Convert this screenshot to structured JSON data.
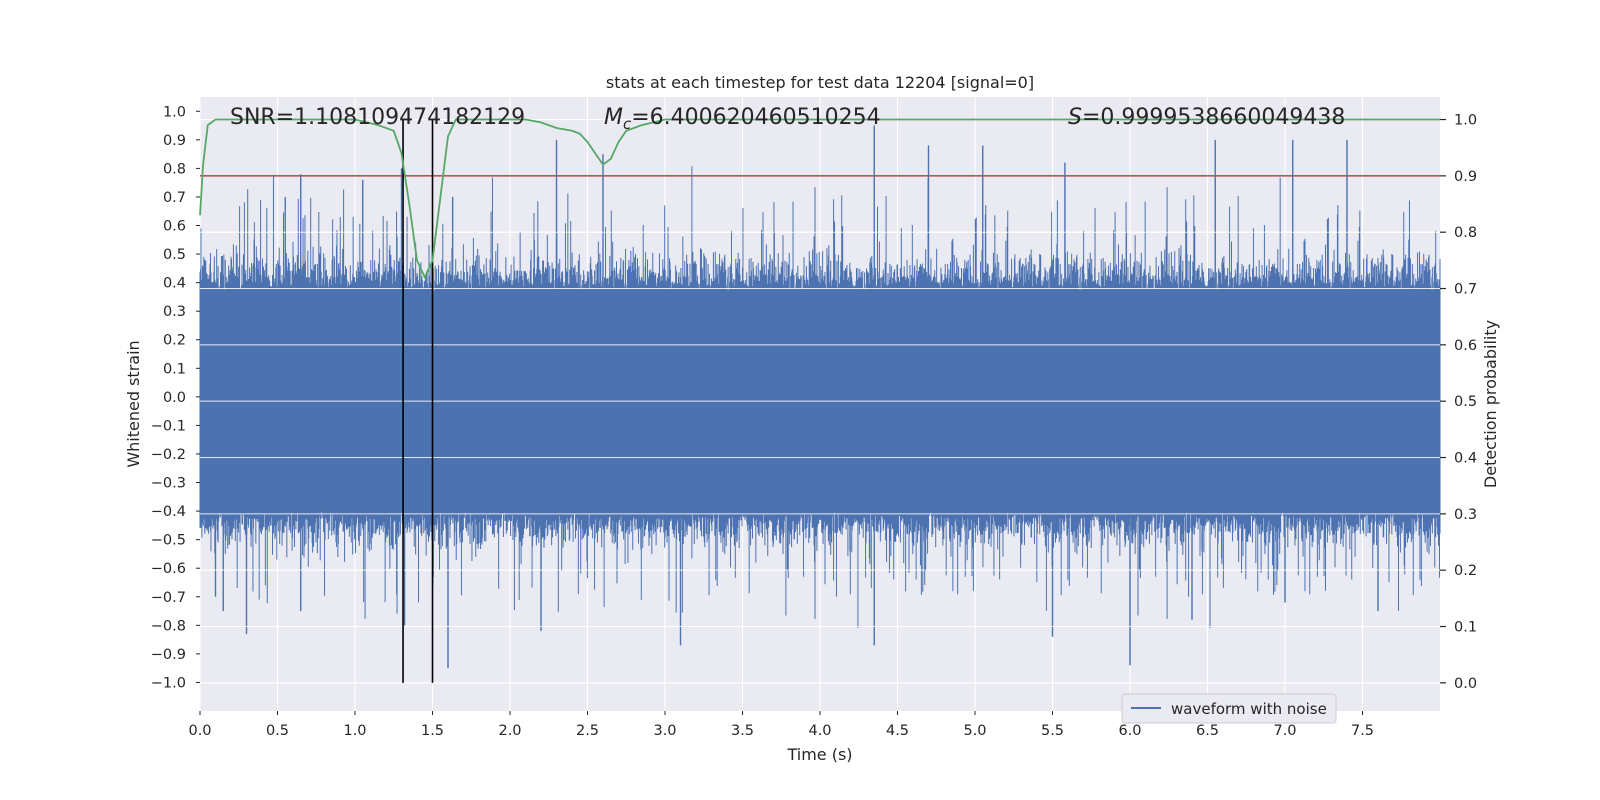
{
  "chart_data": {
    "type": "line",
    "title": "stats at each timestep for test data 12204 [signal=0]",
    "xlabel": "Time (s)",
    "ylabel_left": "Whitened strain",
    "ylabel_right": "Detection probability",
    "xlim": [
      0.0,
      8.0
    ],
    "ylim_left": [
      -1.1,
      1.05
    ],
    "ylim_right": [
      -0.05,
      1.04
    ],
    "x_ticks": [
      "0.0",
      "0.5",
      "1.0",
      "1.5",
      "2.0",
      "2.5",
      "3.0",
      "3.5",
      "4.0",
      "4.5",
      "5.0",
      "5.5",
      "6.0",
      "6.5",
      "7.0",
      "7.5"
    ],
    "y_left_ticks": [
      "1.0",
      "0.9",
      "0.8",
      "0.7",
      "0.6",
      "0.5",
      "0.4",
      "0.3",
      "0.2",
      "0.1",
      "0.0",
      "−0.1",
      "−0.2",
      "−0.3",
      "−0.4",
      "−0.5",
      "−0.6",
      "−0.7",
      "−0.8",
      "−0.9",
      "−1.0"
    ],
    "y_right_ticks": [
      "1.0",
      "0.9",
      "0.8",
      "0.7",
      "0.6",
      "0.5",
      "0.4",
      "0.3",
      "0.2",
      "0.1",
      "0.0"
    ],
    "annotations": {
      "snr": "SNR=1.108109474182129",
      "mc_symbol": "M",
      "mc_sub": "c",
      "mc_value": "=6.400620460510254",
      "s_symbol": "S",
      "s_value": "=0.9999538660049438"
    },
    "legend": [
      "waveform with noise"
    ],
    "colors": {
      "waveform": "#4c72b0",
      "probability": "#55a868",
      "threshold": "#c44e52",
      "markers": "#000000",
      "background": "#eaeaf2",
      "grid": "#ffffff"
    },
    "series": [
      {
        "name": "waveform with noise",
        "axis": "left",
        "color": "#4c72b0",
        "sample_rate_per_s": 2048,
        "duration_s": 8.0,
        "band_envelope": [
          -0.4,
          0.37
        ],
        "positive_spikes": [
          [
            0.35,
            0.55
          ],
          [
            0.55,
            0.7
          ],
          [
            0.65,
            0.78
          ],
          [
            1.05,
            0.76
          ],
          [
            1.3,
            0.8
          ],
          [
            1.63,
            0.7
          ],
          [
            2.3,
            0.9
          ],
          [
            2.6,
            0.85
          ],
          [
            4.35,
            0.95
          ],
          [
            4.7,
            0.88
          ],
          [
            5.05,
            0.88
          ],
          [
            5.58,
            0.82
          ],
          [
            6.55,
            0.9
          ],
          [
            7.05,
            0.9
          ],
          [
            7.4,
            0.9
          ],
          [
            7.8,
            0.55
          ]
        ],
        "negative_spikes": [
          [
            0.1,
            -0.7
          ],
          [
            0.15,
            -0.75
          ],
          [
            0.3,
            -0.83
          ],
          [
            0.65,
            -0.75
          ],
          [
            1.32,
            -0.8
          ],
          [
            1.6,
            -0.95
          ],
          [
            2.2,
            -0.82
          ],
          [
            3.1,
            -0.87
          ],
          [
            4.35,
            -0.87
          ],
          [
            5.5,
            -0.84
          ],
          [
            6.0,
            -0.94
          ],
          [
            6.4,
            -0.78
          ],
          [
            7.0,
            -0.72
          ],
          [
            7.6,
            -0.75
          ]
        ]
      },
      {
        "name": "detection probability",
        "axis": "right",
        "color": "#55a868",
        "x": [
          0.0,
          0.02,
          0.05,
          0.1,
          0.2,
          0.5,
          1.0,
          1.15,
          1.25,
          1.3,
          1.35,
          1.4,
          1.45,
          1.5,
          1.55,
          1.6,
          1.65,
          1.8,
          2.1,
          2.2,
          2.3,
          2.4,
          2.45,
          2.5,
          2.55,
          2.6,
          2.65,
          2.7,
          2.75,
          2.85,
          3.0,
          3.5,
          4.0,
          5.0,
          6.0,
          7.0,
          8.0
        ],
        "values": [
          0.83,
          0.92,
          0.99,
          1.0,
          1.0,
          1.0,
          1.0,
          0.99,
          0.98,
          0.94,
          0.85,
          0.75,
          0.72,
          0.75,
          0.86,
          0.97,
          1.0,
          1.0,
          1.0,
          0.995,
          0.985,
          0.98,
          0.975,
          0.96,
          0.94,
          0.92,
          0.93,
          0.96,
          0.98,
          0.99,
          1.0,
          1.0,
          1.0,
          1.0,
          1.0,
          1.0,
          1.0
        ]
      },
      {
        "name": "threshold",
        "axis": "right",
        "color": "#c44e52",
        "value": 0.9
      }
    ],
    "vertical_markers_s": [
      1.31,
      1.5
    ],
    "grid": true,
    "legend_position": "bottom-right"
  }
}
